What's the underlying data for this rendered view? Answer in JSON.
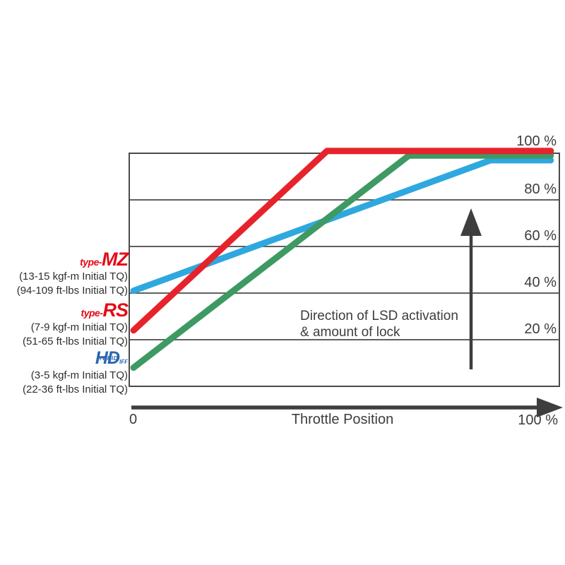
{
  "chart_data": {
    "type": "line",
    "title": "",
    "xlabel": "Throttle Position",
    "x_axis": {
      "min_label": "0",
      "max_label": "100 %"
    },
    "y_tick_labels": [
      "100 %",
      "80 %",
      "60 %",
      "40 %",
      "20 %"
    ],
    "y_axis": {
      "meaning": "LSD lock amount",
      "min_pct": 0,
      "max_pct": 100,
      "gridline_interval_pct": 20,
      "grid": true
    },
    "annotation": {
      "line1": "Direction of LSD activation",
      "line2": "& amount of lock"
    },
    "series": [
      {
        "name": "type-MZ",
        "color": "#2fa8df",
        "points_pct_throttle_lock": [
          [
            1,
            41
          ],
          [
            84,
            97
          ],
          [
            98,
            97
          ]
        ]
      },
      {
        "name": "type-RS",
        "color": "#e6232b",
        "points_pct_throttle_lock": [
          [
            1,
            24
          ],
          [
            46,
            101
          ],
          [
            98,
            101
          ]
        ]
      },
      {
        "name": "HD Hybrid Diff",
        "color": "#3e9a62",
        "points_pct_throttle_lock": [
          [
            1,
            8
          ],
          [
            65,
            99
          ],
          [
            98,
            99
          ]
        ]
      }
    ],
    "legend_position": "left"
  },
  "legend": [
    {
      "logo_prefix": "type-",
      "logo_main": "MZ",
      "torque_metric": "(13-15 kgf-m Initial TQ)",
      "torque_imperial": "(94-109 ft-lbs Initial TQ)"
    },
    {
      "logo_prefix": "type-",
      "logo_main": "RS",
      "torque_metric": "(7-9 kgf-m Initial TQ)",
      "torque_imperial": "(51-65 ft-lbs Initial TQ)"
    },
    {
      "logo_h": "H",
      "logo_hybrid_small": "YBRID",
      "logo_d": "D",
      "logo_diff_small": "IFF",
      "torque_metric": "(3-5 kgf-m Initial TQ)",
      "torque_imperial": "(22-36 ft-lbs Initial TQ)"
    }
  ],
  "colors": {
    "series_type_mz": "#2fa8df",
    "series_type_rs": "#e6232b",
    "series_hd": "#3e9a62",
    "logo_red": "#e30b17",
    "logo_blue": "#2a65b0",
    "grid": "#4a4a4a",
    "text": "#3d3d3d",
    "arrow": "#3e3e3e",
    "background": "#ffffff"
  }
}
